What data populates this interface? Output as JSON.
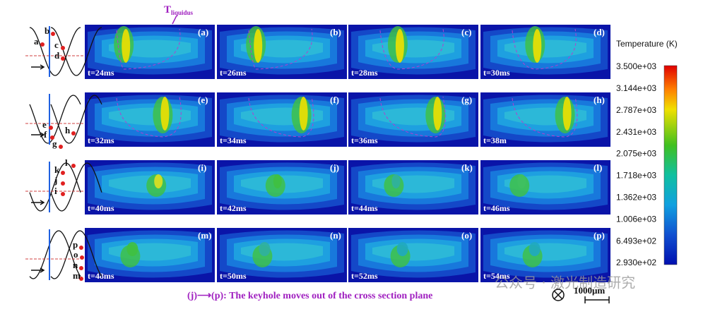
{
  "annotation": {
    "main": "T",
    "subscript": "liquidus"
  },
  "panels": [
    {
      "label": "(a)",
      "time": "t=24ms"
    },
    {
      "label": "(b)",
      "time": "t=26ms"
    },
    {
      "label": "(c)",
      "time": "t=28ms"
    },
    {
      "label": "(d)",
      "time": "t=30ms"
    },
    {
      "label": "(e)",
      "time": "t=32ms"
    },
    {
      "label": "(f)",
      "time": "t=34ms"
    },
    {
      "label": "(g)",
      "time": "t=36ms"
    },
    {
      "label": "(h)",
      "time": "t=38m"
    },
    {
      "label": "(i)",
      "time": "t=40ms"
    },
    {
      "label": "(j)",
      "time": "t=42ms"
    },
    {
      "label": "(k)",
      "time": "t=44ms"
    },
    {
      "label": "(l)",
      "time": "t=46ms"
    },
    {
      "label": "(m)",
      "time": "t=48ms"
    },
    {
      "label": "(n)",
      "time": "t=50ms"
    },
    {
      "label": "(o)",
      "time": "t=52ms"
    },
    {
      "label": "(p)",
      "time": "t=54ms"
    }
  ],
  "sketch_labels": [
    [
      "a",
      "b",
      "c",
      "d"
    ],
    [
      "e",
      "f",
      "g",
      "h"
    ],
    [
      "i",
      "j",
      "k",
      "l"
    ],
    [
      "m",
      "n",
      "o",
      "p"
    ]
  ],
  "colorbar": {
    "title": "Temperature (K)",
    "labels": [
      "3.500e+03",
      "3.144e+03",
      "2.787e+03",
      "2.431e+03",
      "2.075e+03",
      "1.718e+03",
      "1.362e+03",
      "1.006e+03",
      "6.493e+02",
      "2.930e+02"
    ]
  },
  "caption": "(j)⟶(p): The keyhole moves out of the cross section plane",
  "scale_bar": "1000μm",
  "watermark": "公众号 · 激光制造研究"
}
